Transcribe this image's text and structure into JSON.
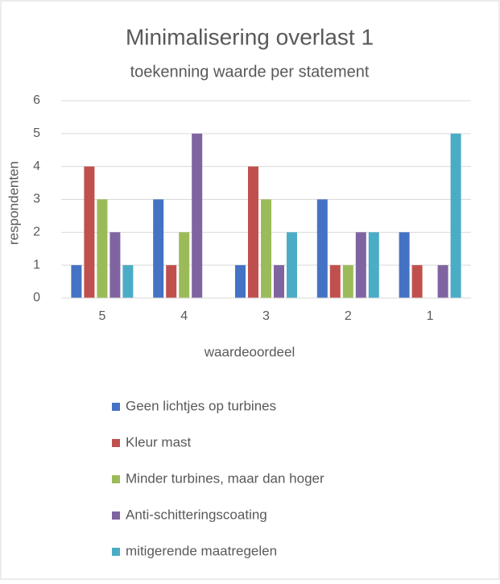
{
  "chart_data": {
    "type": "bar",
    "title": "Minimalisering overlast 1",
    "subtitle": "toekenning waarde per statement",
    "x_label": "waardeoordeel",
    "y_label": "respondenten",
    "categories": [
      "5",
      "4",
      "3",
      "2",
      "1"
    ],
    "series": [
      {
        "name": "Geen lichtjes op turbines",
        "color": "#4472c4",
        "values": [
          1,
          3,
          1,
          3,
          2
        ]
      },
      {
        "name": "Kleur mast",
        "color": "#c0504d",
        "values": [
          4,
          1,
          4,
          1,
          1
        ]
      },
      {
        "name": "Minder turbines, maar dan hoger",
        "color": "#9bbb59",
        "values": [
          3,
          2,
          3,
          1,
          0
        ]
      },
      {
        "name": "Anti-schitteringscoating",
        "color": "#8064a2",
        "values": [
          2,
          5,
          1,
          2,
          1
        ]
      },
      {
        "name": "mitigerende maatregelen",
        "color": "#4bacc6",
        "values": [
          1,
          0,
          2,
          2,
          5
        ]
      }
    ],
    "ylim": [
      0,
      6
    ],
    "yticks": [
      0,
      1,
      2,
      3,
      4,
      5,
      6
    ],
    "grid": true,
    "legend": "bottom"
  }
}
